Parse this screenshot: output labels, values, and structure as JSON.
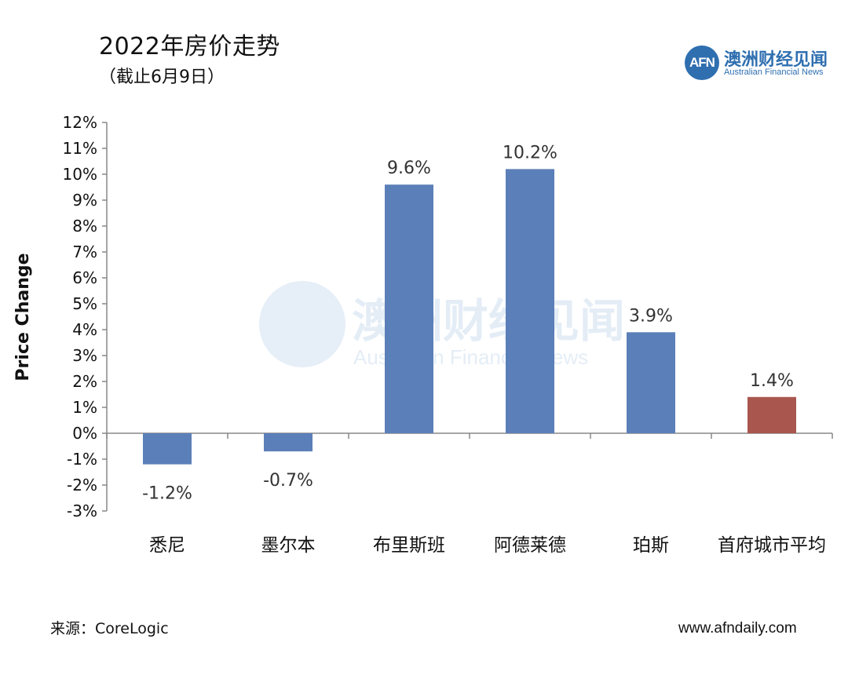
{
  "header": {
    "title": "2022年房价走势",
    "subtitle": "（截止6月9日）"
  },
  "logo": {
    "mark": "AFN",
    "name_cn": "澳洲财经见闻",
    "name_en": "Australian Financial News",
    "color": "#2f6fb0"
  },
  "watermark": {
    "name_cn": "澳洲财经见闻",
    "name_en": "Australian Financial News"
  },
  "chart_data": {
    "type": "bar",
    "title": "2022年房价走势",
    "subtitle": "（截止6月9日）",
    "ylabel": "Price Change",
    "xlabel": "",
    "categories": [
      "悉尼",
      "墨尔本",
      "布里斯班",
      "阿德莱德",
      "珀斯",
      "首府城市平均"
    ],
    "values": [
      -1.2,
      -0.7,
      9.6,
      10.2,
      3.9,
      1.4
    ],
    "value_labels": [
      "-1.2%",
      "-0.7%",
      "9.6%",
      "10.2%",
      "3.9%",
      "1.4%"
    ],
    "bar_colors": [
      "#5b7fb8",
      "#5b7fb8",
      "#5b7fb8",
      "#5b7fb8",
      "#5b7fb8",
      "#a9564e"
    ],
    "ylim": [
      -3,
      12
    ],
    "yticks": [
      12,
      11,
      10,
      9,
      8,
      7,
      6,
      5,
      4,
      3,
      2,
      1,
      0,
      -1,
      -2,
      -3
    ],
    "ytick_labels": [
      "12%",
      "11%",
      "10%",
      "9%",
      "8%",
      "7%",
      "6%",
      "5%",
      "4%",
      "3%",
      "2%",
      "1%",
      "0%",
      "-1%",
      "-2%",
      "-3%"
    ],
    "grid": false,
    "legend": "none"
  },
  "footer": {
    "source": "来源：CoreLogic",
    "website": "www.afndaily.com"
  }
}
